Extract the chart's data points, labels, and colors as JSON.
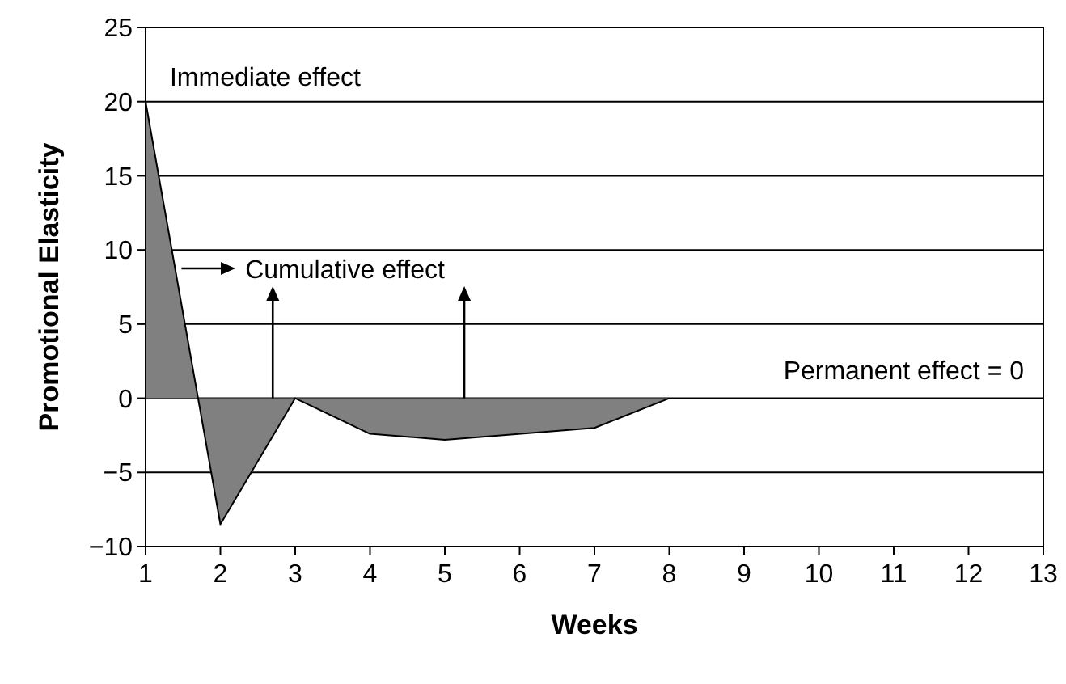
{
  "chart_data": {
    "type": "area",
    "xlabel": "Weeks",
    "ylabel": "Promotional Elasticity",
    "x": [
      1,
      2,
      3,
      4,
      5,
      7,
      8
    ],
    "values": [
      20,
      -8.5,
      0,
      -2.4,
      -2.8,
      -2,
      0
    ],
    "color": "#808080",
    "xlim": [
      1,
      13
    ],
    "xticks": [
      1,
      2,
      3,
      4,
      5,
      6,
      7,
      8,
      9,
      10,
      11,
      12,
      13
    ],
    "ylim": [
      -10,
      25
    ],
    "yticks": [
      {
        "value": -10,
        "label": "−10"
      },
      {
        "value": -5,
        "label": "−5"
      },
      0,
      5,
      10,
      15,
      20,
      25
    ],
    "grid": "y",
    "annotations": [
      "Immediate effect",
      {
        "text": "Cumulative effect",
        "x": 2.7,
        "y": 0
      },
      "Permanent effect = 0"
    ]
  }
}
